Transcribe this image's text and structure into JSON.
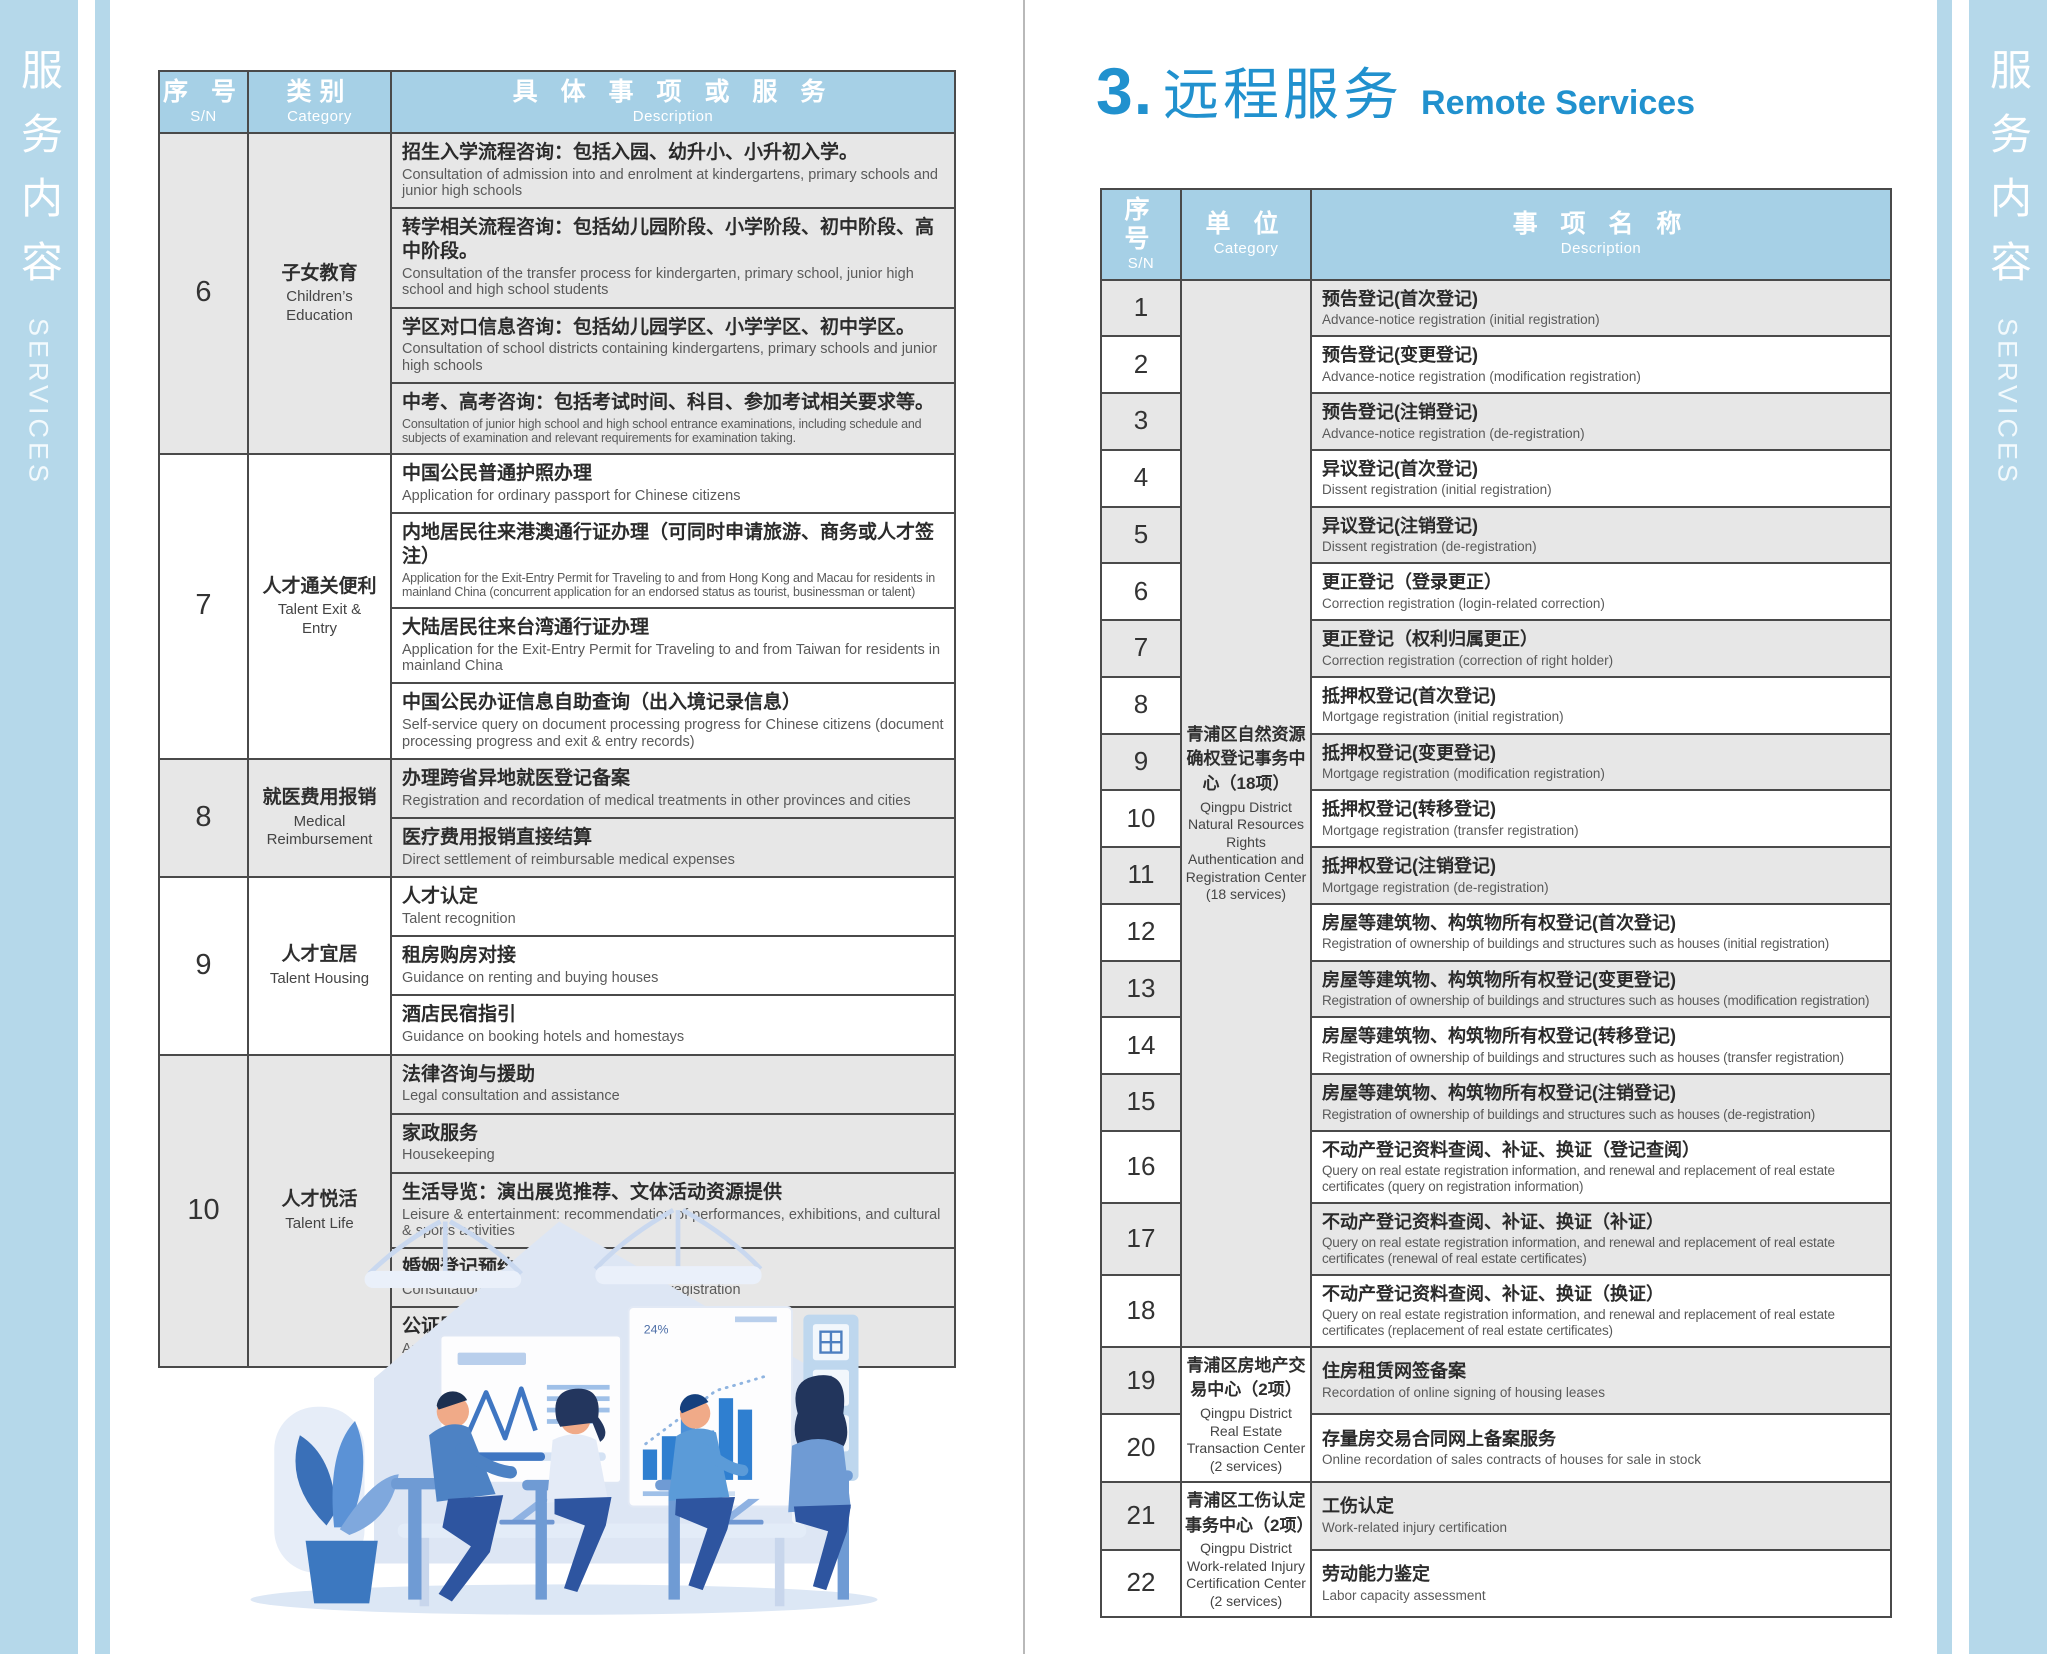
{
  "sidebar": {
    "title_zh": "服务内容",
    "title_en": "SERVICES"
  },
  "colors": {
    "band_blue": "#b5d8ea",
    "header_blue": "#a6d0e6",
    "title_blue": "#2191ce",
    "shaded_row": "#e7e7e7",
    "border": "#4a4a4a"
  },
  "left_table": {
    "headers": [
      {
        "zh": "序 号",
        "en": "S/N"
      },
      {
        "zh": "类别",
        "en": "Category"
      },
      {
        "zh": "具 体 事 项 或 服 务",
        "en": "Description"
      }
    ],
    "groups": [
      {
        "sn": "6",
        "category_zh": "子女教育",
        "category_en": "Children’s Education",
        "shaded": true,
        "items": [
          {
            "zh": "招生入学流程咨询：包括入园、幼升小、小升初入学。",
            "en": "Consultation of admission into and enrolment at kindergartens, primary schools and junior high schools"
          },
          {
            "zh": "转学相关流程咨询：包括幼儿园阶段、小学阶段、初中阶段、高中阶段。",
            "en": "Consultation of the transfer process for kindergarten, primary school, junior high school and high school students"
          },
          {
            "zh": "学区对口信息咨询：包括幼儿园学区、小学学区、初中学区。",
            "en": "Consultation of school districts containing kindergartens, primary schools and junior high schools"
          },
          {
            "zh": "中考、高考咨询：包括考试时间、科目、参加考试相关要求等。",
            "en": "Consultation of junior high school and high school entrance examinations, including schedule and subjects of examination and relevant requirements for examination taking.",
            "en_small": true
          }
        ]
      },
      {
        "sn": "7",
        "category_zh": "人才通关便利",
        "category_en": "Talent Exit & Entry",
        "shaded": false,
        "items": [
          {
            "zh": "中国公民普通护照办理",
            "en": "Application for ordinary passport for Chinese citizens"
          },
          {
            "zh": "内地居民往来港澳通行证办理（可同时申请旅游、商务或人才签注）",
            "en": "Application for the Exit-Entry Permit for Traveling to and from Hong Kong and Macau for residents in mainland China (concurrent application for an endorsed status as tourist, businessman or talent)",
            "en_small": true
          },
          {
            "zh": "大陆居民往来台湾通行证办理",
            "en": "Application for the Exit-Entry Permit for Traveling to and from Taiwan for residents in mainland China"
          },
          {
            "zh": "中国公民办证信息自助查询（出入境记录信息）",
            "en": "Self-service query on document processing progress for Chinese citizens (document processing progress and exit & entry records)"
          }
        ]
      },
      {
        "sn": "8",
        "category_zh": "就医费用报销",
        "category_en": "Medical Reimbursement",
        "shaded": true,
        "items": [
          {
            "zh": "办理跨省异地就医登记备案",
            "en": "Registration and recordation of medical treatments in other provinces and cities"
          },
          {
            "zh": "医疗费用报销直接结算",
            "en": "Direct settlement of reimbursable medical expenses"
          }
        ]
      },
      {
        "sn": "9",
        "category_zh": "人才宜居",
        "category_en": "Talent Housing",
        "shaded": false,
        "items": [
          {
            "zh": "人才认定",
            "en": "Talent recognition"
          },
          {
            "zh": "租房购房对接",
            "en": "Guidance on renting and buying houses"
          },
          {
            "zh": "酒店民宿指引",
            "en": "Guidance on booking hotels and homestays"
          }
        ]
      },
      {
        "sn": "10",
        "category_zh": "人才悦活",
        "category_en": "Talent Life",
        "shaded": true,
        "items": [
          {
            "zh": "法律咨询与援助",
            "en": "Legal consultation and assistance"
          },
          {
            "zh": "家政服务",
            "en": "Housekeeping"
          },
          {
            "zh": "生活导览：演出展览推荐、文体活动资源提供",
            "en": "Leisure & entertainment: recommendation of performances, exhibitions, and cultural & sports activities"
          },
          {
            "zh": "婚姻登记预约咨询",
            "en": "Consultation of appointment for marriage registration"
          },
          {
            "zh": "公证服务预约",
            "en": "Appointment for notarization services"
          }
        ]
      }
    ]
  },
  "right_page": {
    "section_number": "3.",
    "title_zh": "远程服务",
    "title_en": "Remote Services",
    "table": {
      "headers": [
        {
          "zh": "序 号",
          "en": "S/N"
        },
        {
          "zh": "单 位",
          "en": "Category"
        },
        {
          "zh": "事 项 名 称",
          "en": "Description"
        }
      ],
      "groups": [
        {
          "category_zh": "青浦区自然资源确权登记事务中心（18项）",
          "category_en": "Qingpu District Natural Resources Rights Authentication and Registration Center (18 services)",
          "cat_shaded": true,
          "rows": [
            {
              "sn": "1",
              "zh": "预告登记(首次登记)",
              "en": "Advance-notice registration (initial registration)"
            },
            {
              "sn": "2",
              "zh": "预告登记(变更登记)",
              "en": "Advance-notice registration (modification registration)"
            },
            {
              "sn": "3",
              "zh": "预告登记(注销登记)",
              "en": "Advance-notice registration (de-registration)"
            },
            {
              "sn": "4",
              "zh": "异议登记(首次登记)",
              "en": "Dissent registration (initial registration)"
            },
            {
              "sn": "5",
              "zh": "异议登记(注销登记)",
              "en": "Dissent registration (de-registration)"
            },
            {
              "sn": "6",
              "zh": "更正登记（登录更正）",
              "en": "Correction registration (login-related correction)"
            },
            {
              "sn": "7",
              "zh": "更正登记（权利归属更正）",
              "en": "Correction registration (correction of right holder)"
            },
            {
              "sn": "8",
              "zh": "抵押权登记(首次登记)",
              "en": "Mortgage registration (initial registration)"
            },
            {
              "sn": "9",
              "zh": "抵押权登记(变更登记)",
              "en": "Mortgage registration (modification registration)"
            },
            {
              "sn": "10",
              "zh": "抵押权登记(转移登记)",
              "en": "Mortgage registration (transfer registration)"
            },
            {
              "sn": "11",
              "zh": "抵押权登记(注销登记)",
              "en": "Mortgage registration (de-registration)"
            },
            {
              "sn": "12",
              "zh": "房屋等建筑物、构筑物所有权登记(首次登记)",
              "en": "Registration of ownership of buildings and structures such as houses (initial registration)",
              "en_small": true
            },
            {
              "sn": "13",
              "zh": "房屋等建筑物、构筑物所有权登记(变更登记)",
              "en": "Registration of ownership of buildings and structures such as houses (modification registration)",
              "en_small": true
            },
            {
              "sn": "14",
              "zh": "房屋等建筑物、构筑物所有权登记(转移登记)",
              "en": "Registration of ownership of buildings and structures such as houses (transfer registration)",
              "en_small": true
            },
            {
              "sn": "15",
              "zh": "房屋等建筑物、构筑物所有权登记(注销登记)",
              "en": "Registration of ownership of buildings and structures such as houses (de-registration)",
              "en_small": true
            },
            {
              "sn": "16",
              "zh": "不动产登记资料查阅、补证、换证（登记查阅）",
              "en": "Query on real estate registration information, and renewal and replacement of real estate certificates (query on registration information)",
              "en_small": true
            },
            {
              "sn": "17",
              "zh": "不动产登记资料查阅、补证、换证（补证）",
              "en": "Query on real estate registration information, and renewal and replacement of real estate certificates (renewal of real estate certificates)",
              "en_small": true
            },
            {
              "sn": "18",
              "zh": "不动产登记资料查阅、补证、换证（换证）",
              "en": "Query on real estate registration information, and renewal and replacement of real estate certificates (replacement of real estate certificates)",
              "en_small": true
            }
          ]
        },
        {
          "category_zh": "青浦区房地产交易中心（2项）",
          "category_en": "Qingpu District Real Estate Transaction Center (2 services)",
          "cat_shaded": false,
          "rows": [
            {
              "sn": "19",
              "zh": "住房租赁网签备案",
              "en": "Recordation of online signing of housing leases"
            },
            {
              "sn": "20",
              "zh": "存量房交易合同网上备案服务",
              "en": "Online recordation of sales contracts of houses for sale in stock"
            }
          ]
        },
        {
          "category_zh": "青浦区工伤认定事务中心（2项）",
          "category_en": "Qingpu District Work-related Injury Certification Center (2 services)",
          "cat_shaded": false,
          "rows": [
            {
              "sn": "21",
              "zh": "工伤认定",
              "en": "Work-related injury certification"
            },
            {
              "sn": "22",
              "zh": "劳动能力鉴定",
              "en": "Labor capacity assessment"
            }
          ]
        }
      ]
    }
  }
}
